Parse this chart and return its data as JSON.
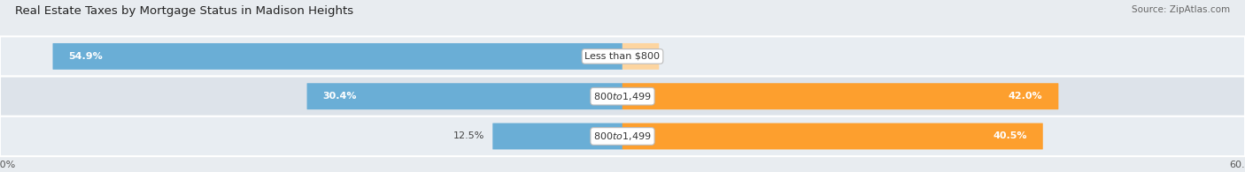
{
  "title": "Real Estate Taxes by Mortgage Status in Madison Heights",
  "source": "Source: ZipAtlas.com",
  "categories": [
    "Less than $800",
    "$800 to $1,499",
    "$800 to $1,499"
  ],
  "without_mortgage": [
    54.9,
    30.4,
    12.5
  ],
  "with_mortgage": [
    0.0,
    42.0,
    40.5
  ],
  "xlim": 60.0,
  "color_without": "#6aaed6",
  "color_with": "#fd9f2e",
  "color_with_light": "#fdd5a0",
  "bar_height": 0.62,
  "title_fontsize": 9.5,
  "tick_fontsize": 8,
  "label_fontsize": 8,
  "legend_fontsize": 8,
  "source_fontsize": 7.5,
  "row_bg_even": "#e8edf2",
  "row_bg_odd": "#dde3ea",
  "fig_bg": "#e8ecf0"
}
